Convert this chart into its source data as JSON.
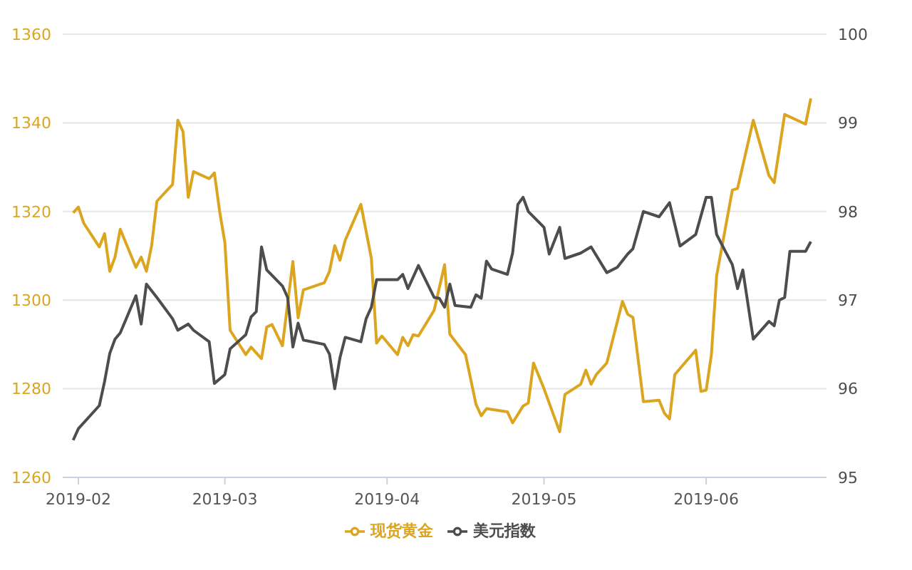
{
  "chart_data": {
    "type": "line",
    "xlim": [
      "2019-01-29",
      "2019-06-24"
    ],
    "xticks": [
      "2019-02",
      "2019-03",
      "2019-04",
      "2019-05",
      "2019-06"
    ],
    "ylim": [
      1260,
      1360
    ],
    "yticks": [
      1260,
      1280,
      1300,
      1320,
      1340,
      1360
    ],
    "y2lim": [
      95,
      100
    ],
    "y2ticks": [
      95,
      96,
      97,
      98,
      99,
      100
    ],
    "grid": "y",
    "legend": "bottom",
    "series": [
      {
        "name": "现货黄金",
        "color": "#dba520",
        "x": [
          "2019-01-31",
          "2019-02-01",
          "2019-02-02",
          "2019-02-05",
          "2019-02-06",
          "2019-02-07",
          "2019-02-08",
          "2019-02-09",
          "2019-02-12",
          "2019-02-13",
          "2019-02-14",
          "2019-02-15",
          "2019-02-16",
          "2019-02-19",
          "2019-02-20",
          "2019-02-21",
          "2019-02-22",
          "2019-02-23",
          "2019-02-26",
          "2019-02-27",
          "2019-02-28",
          "2019-03-01",
          "2019-03-02",
          "2019-03-05",
          "2019-03-06",
          "2019-03-08",
          "2019-03-09",
          "2019-03-10",
          "2019-03-12",
          "2019-03-14",
          "2019-03-15",
          "2019-03-16",
          "2019-03-20",
          "2019-03-21",
          "2019-03-22",
          "2019-03-23",
          "2019-03-24",
          "2019-03-27",
          "2019-03-29",
          "2019-03-30",
          "2019-03-31",
          "2019-04-03",
          "2019-04-04",
          "2019-04-05",
          "2019-04-06",
          "2019-04-07",
          "2019-04-10",
          "2019-04-12",
          "2019-04-13",
          "2019-04-16",
          "2019-04-18",
          "2019-04-19",
          "2019-04-20",
          "2019-04-24",
          "2019-04-25",
          "2019-04-27",
          "2019-04-28",
          "2019-04-29",
          "2019-05-01",
          "2019-05-04",
          "2019-05-05",
          "2019-05-08",
          "2019-05-09",
          "2019-05-10",
          "2019-05-11",
          "2019-05-13",
          "2019-05-16",
          "2019-05-17",
          "2019-05-18",
          "2019-05-20",
          "2019-05-23",
          "2019-05-24",
          "2019-05-25",
          "2019-05-26",
          "2019-05-30",
          "2019-05-31",
          "2019-06-01",
          "2019-06-02",
          "2019-06-03",
          "2019-06-06",
          "2019-06-07",
          "2019-06-10",
          "2019-06-13",
          "2019-06-14",
          "2019-06-16",
          "2019-06-20",
          "2019-06-21"
        ],
        "values": [
          1319.7,
          1321,
          1317.4,
          1312,
          1315,
          1306.5,
          1309.7,
          1316,
          1307.4,
          1309.7,
          1306.5,
          1312.3,
          1322.3,
          1326.1,
          1340.6,
          1338,
          1323.2,
          1329,
          1327.4,
          1328.7,
          1320,
          1313,
          1293.2,
          1287.7,
          1289.4,
          1286.8,
          1293.9,
          1294.5,
          1289.7,
          1308.7,
          1296,
          1302.3,
          1303.9,
          1306.5,
          1312.3,
          1309,
          1313.5,
          1321.6,
          1309.4,
          1290.3,
          1291.9,
          1287.7,
          1291.6,
          1289.7,
          1292.2,
          1291.9,
          1297.7,
          1308,
          1292.3,
          1287.7,
          1276.5,
          1273.9,
          1275.5,
          1274.8,
          1272.3,
          1276.1,
          1276.8,
          1285.8,
          1280,
          1270.3,
          1278.7,
          1281,
          1284.2,
          1281,
          1283.2,
          1285.8,
          1299.7,
          1296.8,
          1296.1,
          1277.1,
          1277.4,
          1274.5,
          1273.2,
          1283.2,
          1288.7,
          1279.4,
          1279.7,
          1287.7,
          1305.5,
          1324.8,
          1325.2,
          1340.6,
          1328.1,
          1326.5,
          1341.9,
          1339.7,
          1345.5
        ]
      },
      {
        "name": "美元指数",
        "color": "#4d4d4d",
        "axis": "y2",
        "x": [
          "2019-01-31",
          "2019-02-01",
          "2019-02-05",
          "2019-02-06",
          "2019-02-07",
          "2019-02-08",
          "2019-02-09",
          "2019-02-12",
          "2019-02-13",
          "2019-02-14",
          "2019-02-16",
          "2019-02-19",
          "2019-02-20",
          "2019-02-22",
          "2019-02-23",
          "2019-02-26",
          "2019-02-27",
          "2019-03-01",
          "2019-03-02",
          "2019-03-05",
          "2019-03-06",
          "2019-03-07",
          "2019-03-08",
          "2019-03-09",
          "2019-03-12",
          "2019-03-13",
          "2019-03-14",
          "2019-03-15",
          "2019-03-16",
          "2019-03-20",
          "2019-03-21",
          "2019-03-22",
          "2019-03-23",
          "2019-03-24",
          "2019-03-27",
          "2019-03-28",
          "2019-03-29",
          "2019-03-30",
          "2019-04-03",
          "2019-04-04",
          "2019-04-05",
          "2019-04-07",
          "2019-04-10",
          "2019-04-11",
          "2019-04-12",
          "2019-04-13",
          "2019-04-14",
          "2019-04-17",
          "2019-04-18",
          "2019-04-19",
          "2019-04-20",
          "2019-04-21",
          "2019-04-24",
          "2019-04-25",
          "2019-04-26",
          "2019-04-27",
          "2019-04-28",
          "2019-05-01",
          "2019-05-02",
          "2019-05-04",
          "2019-05-05",
          "2019-05-08",
          "2019-05-10",
          "2019-05-13",
          "2019-05-15",
          "2019-05-17",
          "2019-05-18",
          "2019-05-20",
          "2019-05-23",
          "2019-05-25",
          "2019-05-27",
          "2019-05-30",
          "2019-06-01",
          "2019-06-02",
          "2019-06-03",
          "2019-06-06",
          "2019-06-07",
          "2019-06-08",
          "2019-06-10",
          "2019-06-13",
          "2019-06-14",
          "2019-06-15",
          "2019-06-16",
          "2019-06-17",
          "2019-06-20",
          "2019-06-21"
        ],
        "values": [
          95.42,
          95.55,
          95.81,
          96.08,
          96.4,
          96.56,
          96.63,
          97.05,
          96.73,
          97.18,
          97.03,
          96.79,
          96.66,
          96.73,
          96.66,
          96.53,
          96.06,
          96.16,
          96.45,
          96.61,
          96.81,
          96.87,
          97.6,
          97.34,
          97.16,
          97.03,
          96.47,
          96.74,
          96.55,
          96.5,
          96.39,
          96,
          96.35,
          96.58,
          96.53,
          96.79,
          96.92,
          97.23,
          97.23,
          97.29,
          97.13,
          97.39,
          97.03,
          97.02,
          96.92,
          97.18,
          96.94,
          96.92,
          97.06,
          97.02,
          97.44,
          97.35,
          97.29,
          97.53,
          98.08,
          98.16,
          98,
          97.82,
          97.52,
          97.82,
          97.47,
          97.53,
          97.6,
          97.31,
          97.37,
          97.52,
          97.58,
          98,
          97.94,
          98.1,
          97.61,
          97.74,
          98.16,
          98.16,
          97.74,
          97.4,
          97.13,
          97.34,
          96.56,
          96.76,
          96.71,
          97,
          97.03,
          97.55,
          97.55,
          97.66
        ]
      }
    ]
  }
}
